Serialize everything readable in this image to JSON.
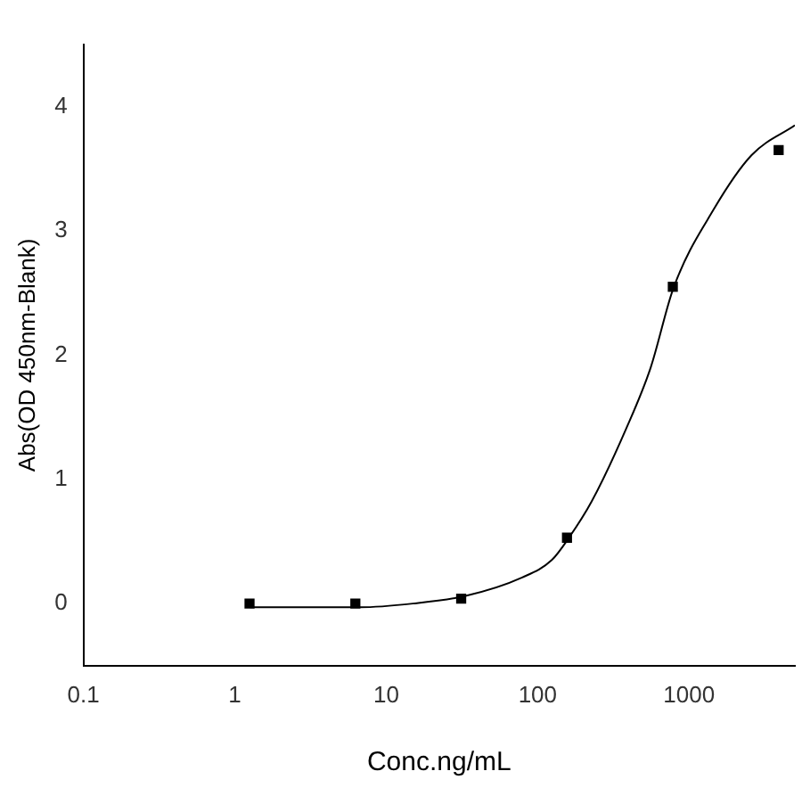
{
  "chart_data": {
    "type": "scatter",
    "xlabel": "Conc.ng/mL",
    "ylabel": "Abs(OD 450nm-Blank)",
    "log": "x",
    "xlim": [
      0.1,
      5000
    ],
    "xticks": [
      0.1,
      1,
      10,
      100,
      1000
    ],
    "ylim": [
      -0.5,
      4.5
    ],
    "yticks": [
      0,
      1,
      2,
      3,
      4
    ],
    "grid": false,
    "legend": false,
    "series": [
      {
        "type": "scatter",
        "color": "#000000",
        "marker": "square",
        "x": [
          1.25,
          6.25,
          31.25,
          156.25,
          781.25,
          3906.25
        ],
        "values": [
          0.0,
          0.0,
          0.04,
          0.53,
          2.55,
          3.65
        ]
      },
      {
        "type": "line",
        "color": "#000000",
        "marker": "none",
        "line_style": "solid",
        "x": [
          1.26,
          6.7,
          15,
          33,
          79,
          124,
          161,
          227,
          385,
          558,
          789,
          1450,
          2590,
          5000
        ],
        "values": [
          -0.03,
          -0.03,
          0.0,
          0.06,
          0.21,
          0.35,
          0.53,
          0.82,
          1.41,
          1.9,
          2.54,
          3.17,
          3.61,
          3.85
        ]
      }
    ]
  }
}
